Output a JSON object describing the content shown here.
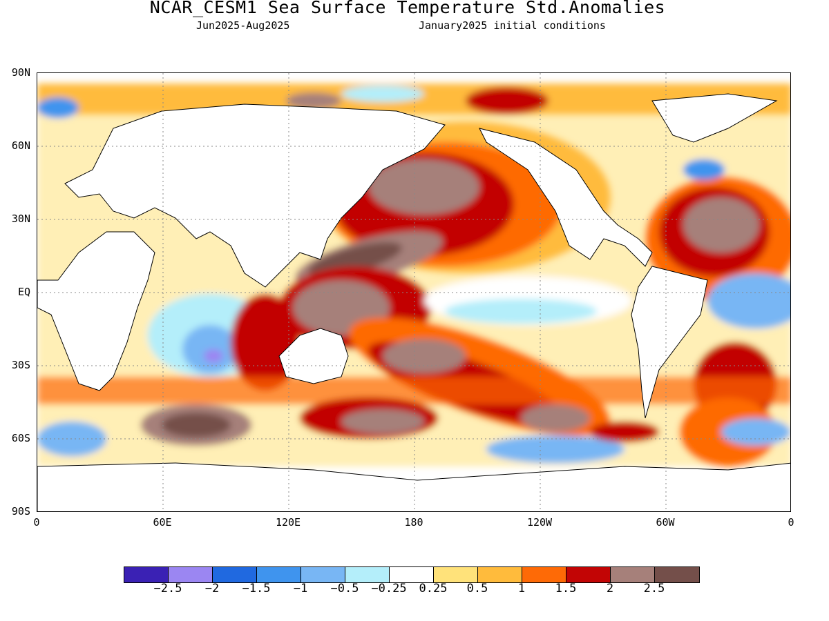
{
  "title": "NCAR_CESM1 Sea Surface Temperature Std.Anomalies",
  "subtitle_left": "Jun2025-Aug2025",
  "subtitle_right": "January2025 initial conditions",
  "lat_labels": [
    "90N",
    "60N",
    "30N",
    "EQ",
    "30S",
    "60S",
    "90S"
  ],
  "lon_labels": [
    "0",
    "60E",
    "120E",
    "180",
    "120W",
    "60W",
    "0"
  ],
  "colorbar": {
    "colors": [
      "#3a21b4",
      "#9b86f2",
      "#2069e0",
      "#3f94ee",
      "#78b6f4",
      "#b4eefa",
      "#ffffff",
      "#ffe27a",
      "#ffbb3c",
      "#fe6a06",
      "#c20505",
      "#a6807a",
      "#744f4a"
    ],
    "labels": [
      "-2.5",
      "-2",
      "-1.5",
      "-1",
      "-0.5",
      "-0.25",
      "0.25",
      "0.5",
      "1",
      "1.5",
      "2",
      "2.5"
    ]
  },
  "colors": {
    "land": "#ffffff",
    "coast": "#000000",
    "grid": "#888888"
  }
}
